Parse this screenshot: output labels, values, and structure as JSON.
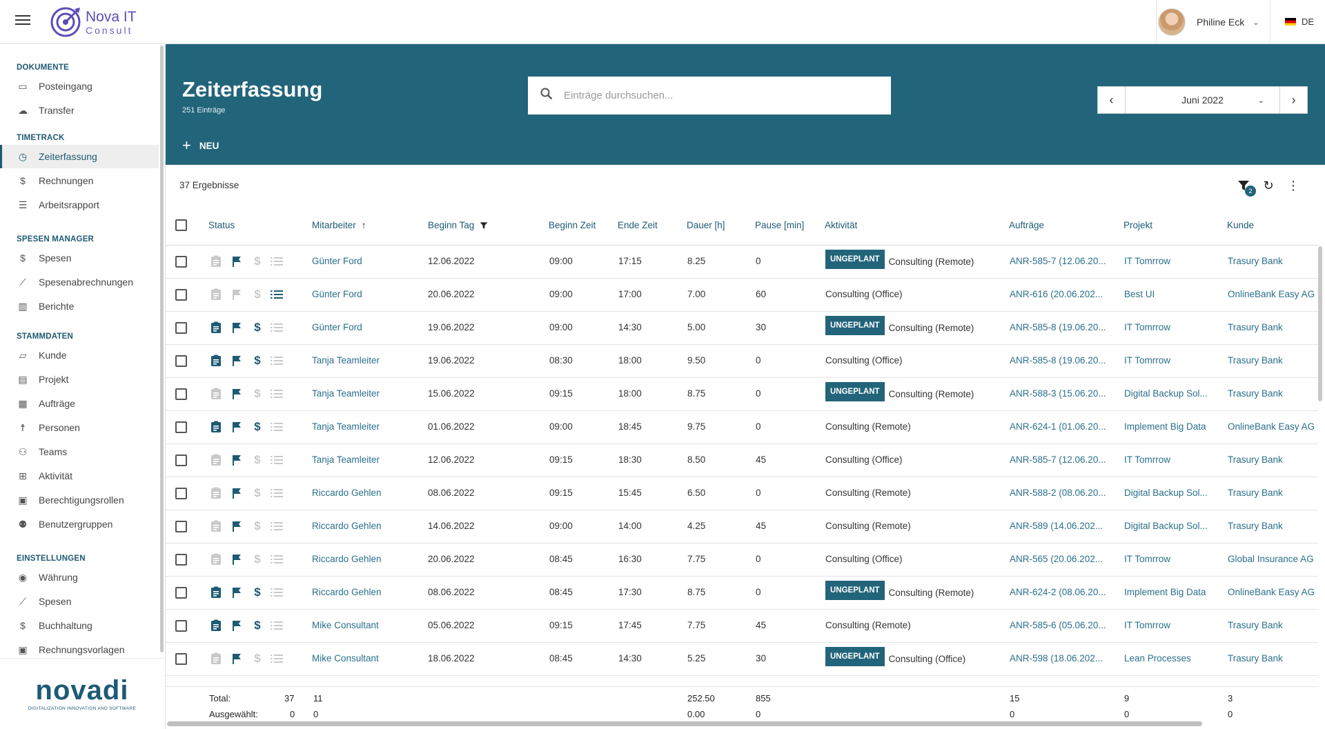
{
  "app": {
    "logo_line1": "Nova IT",
    "logo_line2": "Consult",
    "user_name": "Philine Eck",
    "language": "DE"
  },
  "sidebar": {
    "sections": [
      {
        "title": "DOKUMENTE",
        "items": [
          {
            "label": "Posteingang",
            "icon": "inbox-icon",
            "glyph": "▭"
          },
          {
            "label": "Transfer",
            "icon": "cloud-upload-icon",
            "glyph": "☁"
          }
        ]
      },
      {
        "title": "TIMETRACK",
        "items": [
          {
            "label": "Zeiterfassung",
            "icon": "clock-icon",
            "glyph": "◷",
            "active": true
          },
          {
            "label": "Rechnungen",
            "icon": "invoice-icon",
            "glyph": "$"
          },
          {
            "label": "Arbeitsrapport",
            "icon": "list-icon",
            "glyph": "☰"
          }
        ]
      },
      {
        "title": "SPESEN MANAGER",
        "items": [
          {
            "label": "Spesen",
            "icon": "dollar-icon",
            "glyph": "$"
          },
          {
            "label": "Spesenabrechnungen",
            "icon": "trend-icon",
            "glyph": "⟋"
          },
          {
            "label": "Berichte",
            "icon": "bar-chart-icon",
            "glyph": "▥"
          }
        ]
      },
      {
        "title": "STAMMDATEN",
        "items": [
          {
            "label": "Kunde",
            "icon": "folder-icon",
            "glyph": "▱"
          },
          {
            "label": "Projekt",
            "icon": "document-icon",
            "glyph": "▤"
          },
          {
            "label": "Aufträge",
            "icon": "calendar-icon",
            "glyph": "▦"
          },
          {
            "label": "Personen",
            "icon": "person-icon",
            "glyph": "☨"
          },
          {
            "label": "Teams",
            "icon": "team-icon",
            "glyph": "⚇"
          },
          {
            "label": "Aktivität",
            "icon": "activity-icon",
            "glyph": "⊞"
          },
          {
            "label": "Berechtigungsrollen",
            "icon": "lock-icon",
            "glyph": "▣"
          },
          {
            "label": "Benutzergruppen",
            "icon": "group-icon",
            "glyph": "⚉"
          }
        ]
      },
      {
        "title": "EINSTELLUNGEN",
        "items": [
          {
            "label": "Währung",
            "icon": "currency-icon",
            "glyph": "◉"
          },
          {
            "label": "Spesen",
            "icon": "trend-icon",
            "glyph": "⟋"
          },
          {
            "label": "Buchhaltung",
            "icon": "dollar-icon",
            "glyph": "$"
          },
          {
            "label": "Rechnungsvorlagen",
            "icon": "template-icon",
            "glyph": "▣"
          }
        ]
      }
    ],
    "brand_big": "novadi",
    "brand_small": "DIGITALIZATION INNOVATION AND SOFTWARE"
  },
  "header": {
    "title": "Zeiterfassung",
    "subtitle": "251 Einträge",
    "search_placeholder": "Einträge durchsuchen...",
    "month": "Juni 2022",
    "new_label": "NEU"
  },
  "toolbar": {
    "results": "37 Ergebnisse",
    "filter_count": "2"
  },
  "table": {
    "columns": {
      "status": "Status",
      "mitarbeiter": "Mitarbeiter",
      "beginn_tag": "Beginn Tag",
      "beginn_zeit": "Beginn Zeit",
      "ende_zeit": "Ende Zeit",
      "dauer": "Dauer [h]",
      "pause": "Pause [min]",
      "aktivitaet": "Aktivität",
      "auftraege": "Aufträge",
      "projekt": "Projekt",
      "kunde": "Kunde"
    },
    "badge_label": "UNGEPLANT",
    "rows": [
      {
        "s": [
          0,
          1,
          0,
          0
        ],
        "mitarbeiter": "Günter Ford",
        "tag": "12.06.2022",
        "beginn": "09:00",
        "ende": "17:15",
        "dauer": "8.25",
        "pause": "0",
        "ungeplant": true,
        "aktivitaet": "Consulting (Remote)",
        "auftrag": "ANR-585-7 (12.06.20...",
        "projekt": "IT Tomrrow",
        "kunde": "Trasury Bank"
      },
      {
        "s": [
          0,
          0,
          0,
          1
        ],
        "mitarbeiter": "Günter Ford",
        "tag": "20.06.2022",
        "beginn": "09:00",
        "ende": "17:00",
        "dauer": "7.00",
        "pause": "60",
        "ungeplant": false,
        "aktivitaet": "Consulting (Office)",
        "auftrag": "ANR-616 (20.06.202...",
        "projekt": "Best UI",
        "kunde": "OnlineBank Easy AG"
      },
      {
        "s": [
          1,
          1,
          1,
          0
        ],
        "mitarbeiter": "Günter Ford",
        "tag": "19.06.2022",
        "beginn": "09:00",
        "ende": "14:30",
        "dauer": "5.00",
        "pause": "30",
        "ungeplant": true,
        "aktivitaet": "Consulting (Remote)",
        "auftrag": "ANR-585-8 (19.06.20...",
        "projekt": "IT Tomrrow",
        "kunde": "Trasury Bank"
      },
      {
        "s": [
          1,
          1,
          1,
          0
        ],
        "mitarbeiter": "Tanja Teamleiter",
        "tag": "19.06.2022",
        "beginn": "08:30",
        "ende": "18:00",
        "dauer": "9.50",
        "pause": "0",
        "ungeplant": false,
        "aktivitaet": "Consulting (Office)",
        "auftrag": "ANR-585-8 (19.06.20...",
        "projekt": "IT Tomrrow",
        "kunde": "Trasury Bank"
      },
      {
        "s": [
          0,
          1,
          0,
          0
        ],
        "mitarbeiter": "Tanja Teamleiter",
        "tag": "15.06.2022",
        "beginn": "09:15",
        "ende": "18:00",
        "dauer": "8.75",
        "pause": "0",
        "ungeplant": true,
        "aktivitaet": "Consulting (Remote)",
        "auftrag": "ANR-588-3 (15.06.20...",
        "projekt": "Digital Backup Sol...",
        "kunde": "Trasury Bank"
      },
      {
        "s": [
          1,
          1,
          1,
          0
        ],
        "mitarbeiter": "Tanja Teamleiter",
        "tag": "01.06.2022",
        "beginn": "09:00",
        "ende": "18:45",
        "dauer": "9.75",
        "pause": "0",
        "ungeplant": false,
        "aktivitaet": "Consulting (Remote)",
        "auftrag": "ANR-624-1 (01.06.20...",
        "projekt": "Implement Big Data",
        "kunde": "OnlineBank Easy AG"
      },
      {
        "s": [
          0,
          1,
          0,
          0
        ],
        "mitarbeiter": "Tanja Teamleiter",
        "tag": "12.06.2022",
        "beginn": "09:15",
        "ende": "18:30",
        "dauer": "8.50",
        "pause": "45",
        "ungeplant": false,
        "aktivitaet": "Consulting (Office)",
        "auftrag": "ANR-585-7 (12.06.20...",
        "projekt": "IT Tomrrow",
        "kunde": "Trasury Bank"
      },
      {
        "s": [
          0,
          1,
          0,
          0
        ],
        "mitarbeiter": "Riccardo Gehlen",
        "tag": "08.06.2022",
        "beginn": "09:15",
        "ende": "15:45",
        "dauer": "6.50",
        "pause": "0",
        "ungeplant": false,
        "aktivitaet": "Consulting (Remote)",
        "auftrag": "ANR-588-2 (08.06.20...",
        "projekt": "Digital Backup Sol...",
        "kunde": "Trasury Bank"
      },
      {
        "s": [
          0,
          1,
          0,
          0
        ],
        "mitarbeiter": "Riccardo Gehlen",
        "tag": "14.06.2022",
        "beginn": "09:00",
        "ende": "14:00",
        "dauer": "4.25",
        "pause": "45",
        "ungeplant": false,
        "aktivitaet": "Consulting (Remote)",
        "auftrag": "ANR-589 (14.06.202...",
        "projekt": "Digital Backup Sol...",
        "kunde": "Trasury Bank"
      },
      {
        "s": [
          0,
          1,
          0,
          0
        ],
        "mitarbeiter": "Riccardo Gehlen",
        "tag": "20.06.2022",
        "beginn": "08:45",
        "ende": "16:30",
        "dauer": "7.75",
        "pause": "0",
        "ungeplant": false,
        "aktivitaet": "Consulting (Office)",
        "auftrag": "ANR-565 (20.06.202...",
        "projekt": "IT Tomrrow",
        "kunde": "Global Insurance AG"
      },
      {
        "s": [
          1,
          1,
          1,
          0
        ],
        "mitarbeiter": "Riccardo Gehlen",
        "tag": "08.06.2022",
        "beginn": "08:45",
        "ende": "17:30",
        "dauer": "8.75",
        "pause": "0",
        "ungeplant": true,
        "aktivitaet": "Consulting (Remote)",
        "auftrag": "ANR-624-2 (08.06.20...",
        "projekt": "Implement Big Data",
        "kunde": "OnlineBank Easy AG"
      },
      {
        "s": [
          1,
          1,
          1,
          0
        ],
        "mitarbeiter": "Mike Consultant",
        "tag": "05.06.2022",
        "beginn": "09:15",
        "ende": "17:45",
        "dauer": "7.75",
        "pause": "45",
        "ungeplant": false,
        "aktivitaet": "Consulting (Remote)",
        "auftrag": "ANR-585-6 (05.06.20...",
        "projekt": "IT Tomrrow",
        "kunde": "Trasury Bank"
      },
      {
        "s": [
          0,
          1,
          0,
          0
        ],
        "mitarbeiter": "Mike Consultant",
        "tag": "18.06.2022",
        "beginn": "08:45",
        "ende": "14:30",
        "dauer": "5.25",
        "pause": "30",
        "ungeplant": true,
        "aktivitaet": "Consulting (Office)",
        "auftrag": "ANR-598 (18.06.202...",
        "projekt": "Lean Processes",
        "kunde": "Trasury Bank"
      }
    ]
  },
  "footer": {
    "total_label": "Total:",
    "selected_label": "Ausgewählt:",
    "total": {
      "count": "37",
      "mitarbeiter": "11",
      "dauer": "252.50",
      "pause": "855",
      "auftraege": "15",
      "projekt": "9",
      "kunde": "3"
    },
    "selected": {
      "count": "0",
      "mitarbeiter": "0",
      "dauer": "0.00",
      "pause": "0",
      "auftraege": "0",
      "projekt": "0",
      "kunde": "0"
    }
  },
  "colors": {
    "primary": "#22647a",
    "link": "#2a6f8a",
    "brand_purple": "#5b4db7"
  }
}
